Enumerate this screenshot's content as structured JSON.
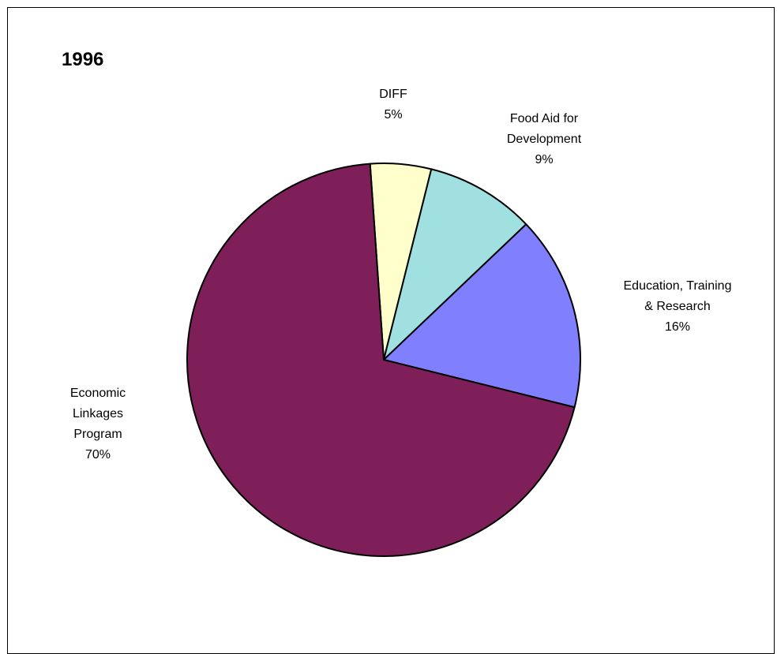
{
  "chart_data": {
    "type": "pie",
    "title": "1996",
    "slices": [
      {
        "label_lines": [
          "DIFF"
        ],
        "value": 5,
        "value_label": "5%",
        "color": "#FFFFCC"
      },
      {
        "label_lines": [
          "Food Aid for",
          "Development"
        ],
        "value": 9,
        "value_label": "9%",
        "color": "#A0E0E0"
      },
      {
        "label_lines": [
          "Education, Training",
          "& Research"
        ],
        "value": 16,
        "value_label": "16%",
        "color": "#8080FF"
      },
      {
        "label_lines": [
          "Economic",
          "Linkages",
          "Program"
        ],
        "value": 70,
        "value_label": "70%",
        "color": "#7F1F5A"
      }
    ],
    "start_angle_deg": -4,
    "direction": "clockwise",
    "legend": "none"
  }
}
